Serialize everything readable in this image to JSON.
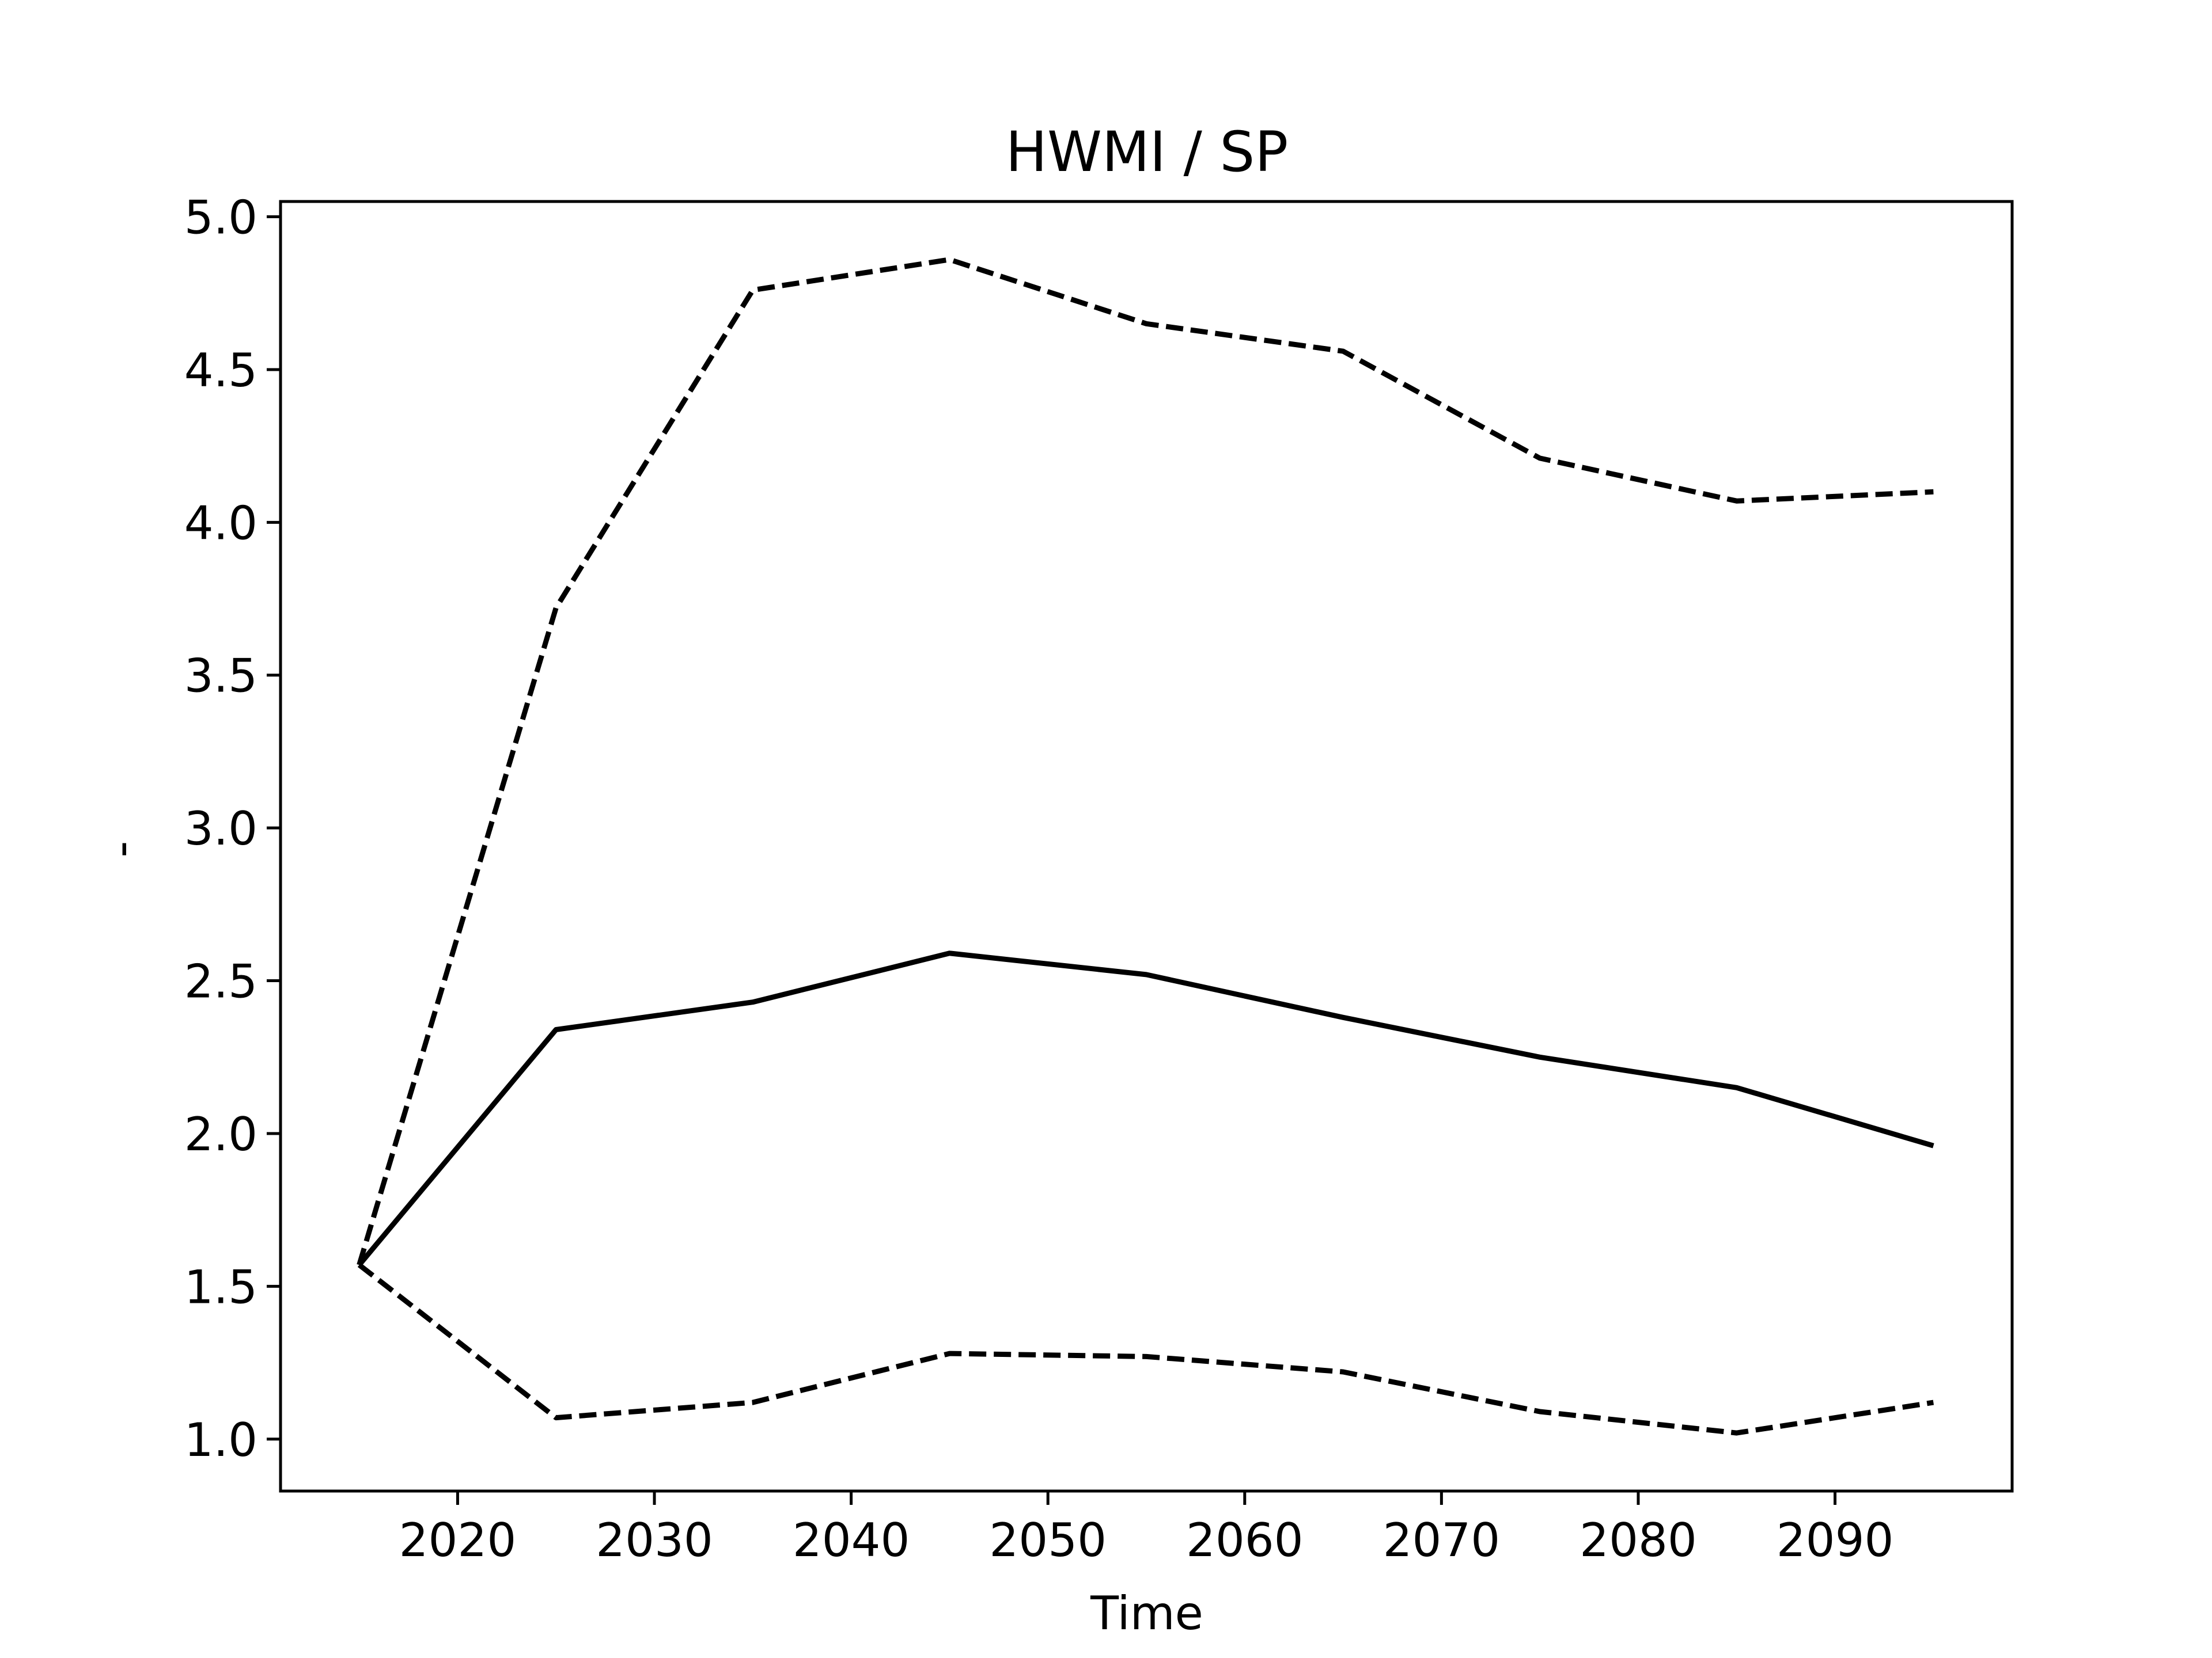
{
  "chart_data": {
    "type": "line",
    "title": "HWMI / SP",
    "xlabel": "Time",
    "ylabel": "-",
    "xlim": [
      2011,
      2099
    ],
    "ylim": [
      0.83,
      5.05
    ],
    "xticks": [
      "2020",
      "2030",
      "2040",
      "2050",
      "2060",
      "2070",
      "2080",
      "2090"
    ],
    "yticks": [
      "1.0",
      "1.5",
      "2.0",
      "2.5",
      "3.0",
      "3.5",
      "4.0",
      "4.5",
      "5.0"
    ],
    "grid": false,
    "x": [
      2015,
      2025,
      2035,
      2045,
      2055,
      2065,
      2075,
      2085,
      2095
    ],
    "series": [
      {
        "values": [
          1.57,
          3.72,
          4.76,
          4.86,
          4.65,
          4.56,
          4.21,
          4.07,
          4.1
        ],
        "color": "#000000",
        "style": "dashed"
      },
      {
        "values": [
          1.57,
          2.34,
          2.43,
          2.59,
          2.52,
          2.38,
          2.25,
          2.15,
          1.96
        ],
        "color": "#000000",
        "style": "solid"
      },
      {
        "values": [
          1.57,
          1.07,
          1.12,
          1.28,
          1.27,
          1.22,
          1.09,
          1.02,
          1.12
        ],
        "color": "#000000",
        "style": "dashed"
      }
    ]
  }
}
